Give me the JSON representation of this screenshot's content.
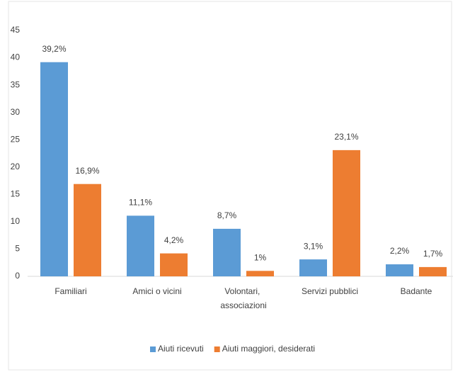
{
  "chart_data": {
    "type": "bar",
    "categories": [
      "Familiari",
      "Amici o vicini",
      "Volontari, associazioni",
      "Servizi pubblici",
      "Badante"
    ],
    "series": [
      {
        "name": "Aiuti ricevuti",
        "color": "#5b9bd5",
        "values": [
          39.2,
          11.1,
          8.7,
          3.1,
          2.2
        ],
        "value_labels": [
          "39,2%",
          "11,1%",
          "8,7%",
          "3,1%",
          "2,2%"
        ]
      },
      {
        "name": "Aiuti maggiori, desiderati",
        "color": "#ed7d31",
        "values": [
          16.9,
          4.2,
          1,
          23.1,
          1.7
        ],
        "value_labels": [
          "16,9%",
          "4,2%",
          "1%",
          "23,1%",
          "1,7%"
        ]
      }
    ],
    "ylim": [
      0,
      45
    ],
    "yticks": [
      0,
      5,
      10,
      15,
      20,
      25,
      30,
      35,
      40,
      45
    ],
    "grid": false,
    "legend": "bottom"
  }
}
